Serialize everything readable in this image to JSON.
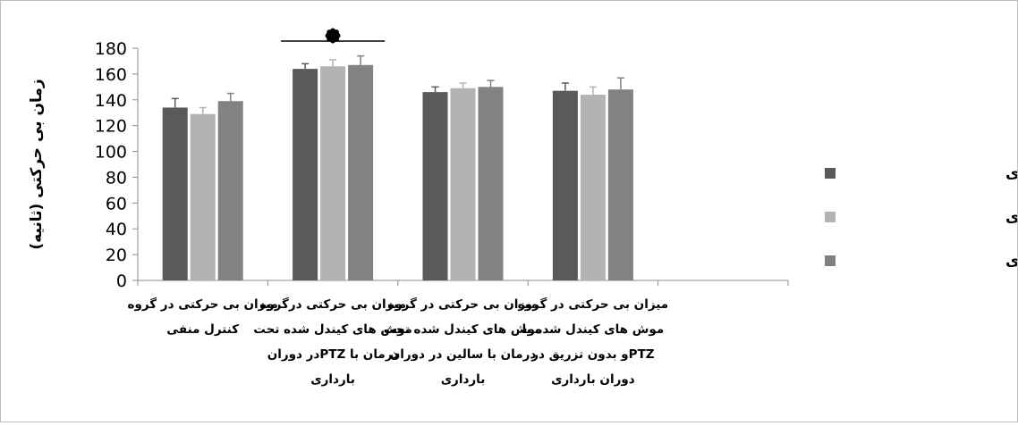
{
  "chart_data": {
    "type": "bar",
    "title": "",
    "ylabel": "زمان بی حرکتی (ثانیه)",
    "xlabel": "",
    "ylim": [
      0,
      180
    ],
    "yticks": [
      0,
      20,
      40,
      60,
      80,
      100,
      120,
      140,
      160,
      180
    ],
    "grid": false,
    "legend_position": "right",
    "categories": [
      [
        "میزان بی حرکتی در گروه",
        "کنترل منفی"
      ],
      [
        "میزان بی حرکتی درگروه",
        "موش های کیندل شده تحت",
        "درمان با  PTZدر دوران",
        "بارداری"
      ],
      [
        "میزان بی حرکتی در گروه",
        "موش های کیندل شده تحت",
        "درمان با سالین در دوران",
        "بارداری"
      ],
      [
        "میزان بی حرکتی در گروه",
        "موش های کیندل شده با",
        "PTZو بدون تزریق در",
        "دوران بارداری"
      ]
    ],
    "series": [
      {
        "name": "روز جهاردهم بارداری",
        "color": "#5a5a5a",
        "values": [
          134,
          164,
          146,
          147
        ],
        "errors": [
          7,
          4,
          4,
          6
        ]
      },
      {
        "name": "روز شانزدهم بارداری",
        "color": "#b3b3b3",
        "values": [
          129,
          166,
          149,
          144
        ],
        "errors": [
          5,
          5,
          4,
          6
        ]
      },
      {
        "name": "روز هجدهم بارداری",
        "color": "#828282",
        "values": [
          139,
          167,
          150,
          148
        ],
        "errors": [
          6,
          7,
          5,
          9
        ]
      }
    ],
    "annotations": [
      {
        "category_index": 1,
        "symbol": "significance-marker",
        "color": "#000000"
      }
    ]
  }
}
